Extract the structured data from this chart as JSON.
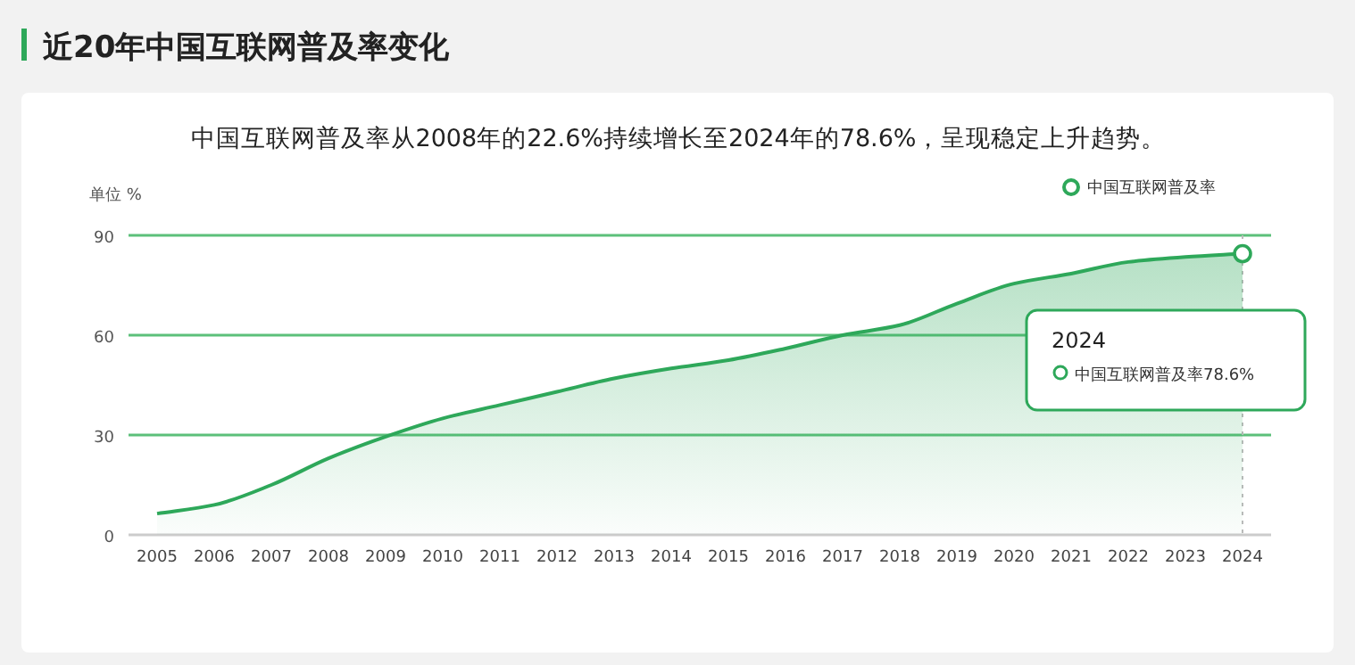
{
  "chart_data": {
    "type": "area",
    "title": "近20年中国互联网普及率变化",
    "subtitle": "中国互联网普及率从2008年的22.6%持续增长至2024年的78.6%，呈现稳定上升趋势。",
    "ylabel": "单位 %",
    "categories": [
      "2005",
      "2006",
      "2007",
      "2008",
      "2009",
      "2010",
      "2011",
      "2012",
      "2013",
      "2014",
      "2015",
      "2016",
      "2017",
      "2018",
      "2019",
      "2020",
      "2021",
      "2022",
      "2023",
      "2024"
    ],
    "series": [
      {
        "name": "中国互联网普及率",
        "color": "#2ea85a",
        "values": [
          6.4,
          9,
          15,
          23,
          29.5,
          35,
          39,
          43,
          47,
          50,
          52.5,
          56,
          60,
          63,
          69.5,
          75.5,
          78.5,
          82,
          83.5,
          84.5
        ]
      }
    ],
    "ylim": [
      0,
      90
    ],
    "yticks": [
      0,
      30,
      60,
      90
    ],
    "grid": "y",
    "legend": "top right",
    "marker": "none",
    "ref_lines": [
      {
        "axis": "x",
        "value": "2024",
        "color": "#bbbbbb",
        "line_style": "dotted"
      }
    ],
    "annotations": [
      "2024",
      "中国互联网普及率78.6%"
    ]
  }
}
